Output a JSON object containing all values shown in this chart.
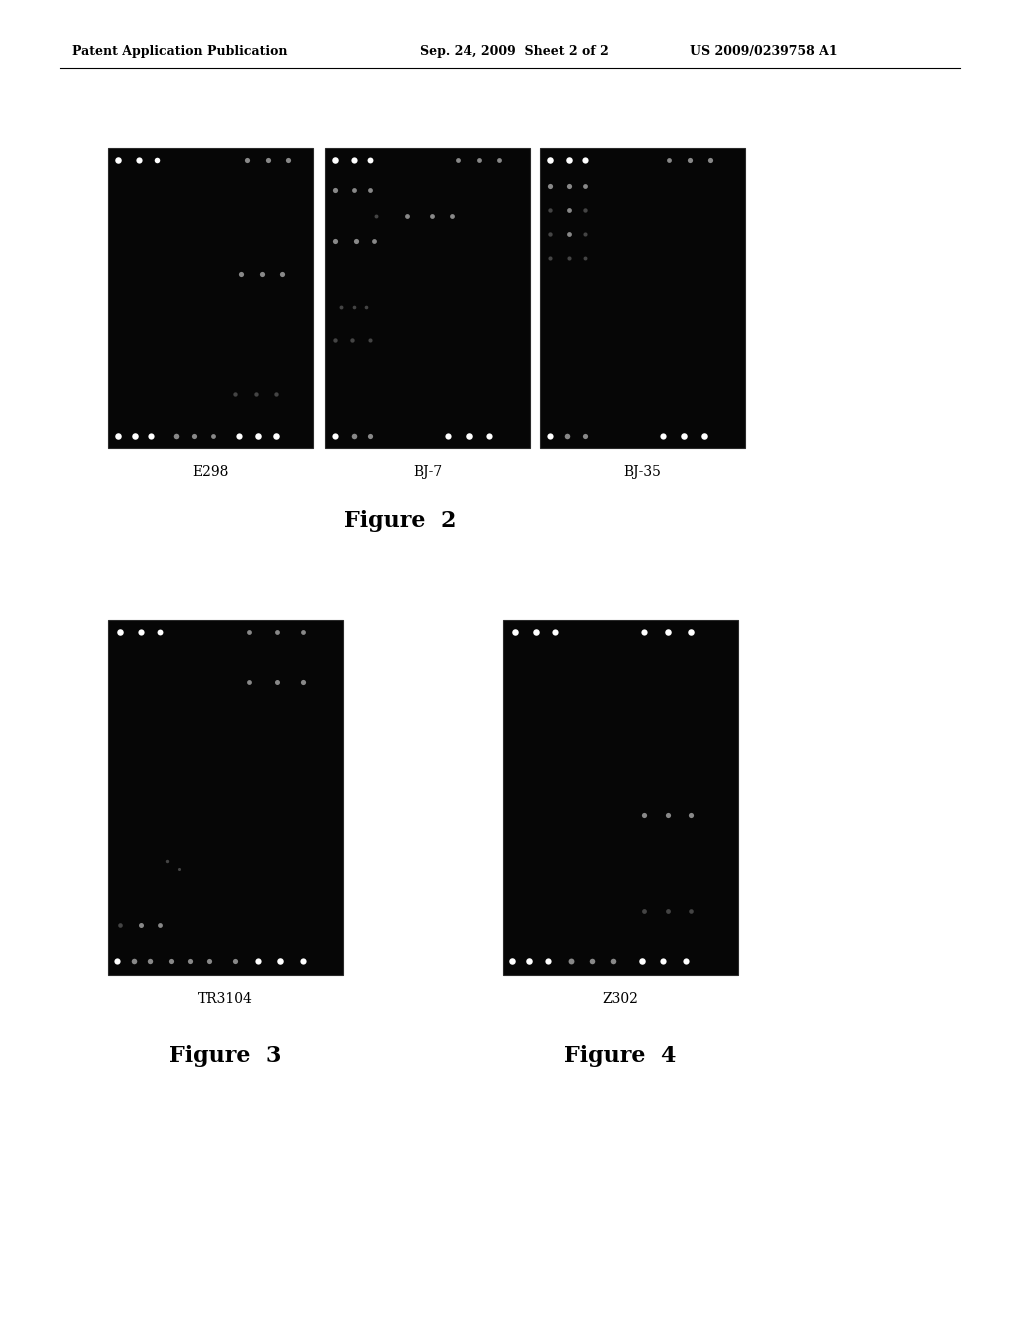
{
  "page_bg": "#ffffff",
  "header_left": "Patent Application Publication",
  "header_mid": "Sep. 24, 2009  Sheet 2 of 2",
  "header_right": "US 2009/0239758 A1",
  "fig2_labels": [
    "E298",
    "BJ-7",
    "BJ-35"
  ],
  "fig2_caption": "Figure  2",
  "fig3_label": "TR3104",
  "fig3_caption": "Figure  3",
  "fig4_label": "Z302",
  "fig4_caption": "Figure  4"
}
